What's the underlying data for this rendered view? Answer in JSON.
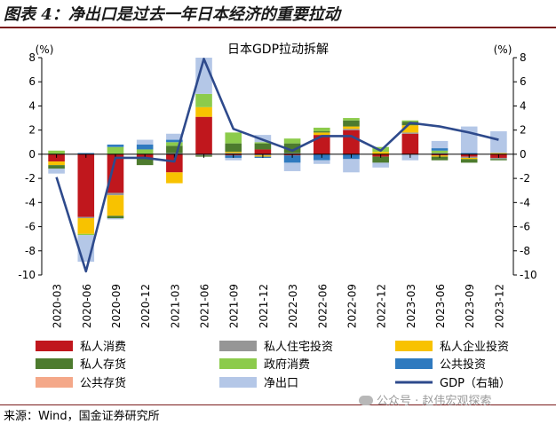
{
  "header": {
    "title": "图表 4：净出口是过去一年日本经济的重要拉动"
  },
  "source": "来源：Wind，国金证券研究所",
  "watermark": "公众号 · 赵伟宏观探索",
  "chart_data": {
    "type": "bar",
    "stacked": true,
    "title": "日本GDP拉动拆解",
    "left_unit": "(%)",
    "right_unit": "(%)",
    "ylim": [
      -10,
      8
    ],
    "y2lim": [
      -10,
      8
    ],
    "yticks": [
      -10,
      -8,
      -6,
      -4,
      -2,
      0,
      2,
      4,
      6,
      8
    ],
    "grid": false,
    "legend_position": "bottom",
    "categories": [
      "2020-03",
      "2020-06",
      "2020-09",
      "2020-12",
      "2021-03",
      "2021-06",
      "2021-09",
      "2021-12",
      "2022-03",
      "2022-06",
      "2022-09",
      "2022-12",
      "2023-03",
      "2023-06",
      "2023-09",
      "2023-12"
    ],
    "series": [
      {
        "name": "私人消费",
        "color": "#c0171d",
        "values": [
          -0.6,
          -5.2,
          -3.2,
          -0.3,
          -1.5,
          3.1,
          -0.1,
          0.4,
          -0.1,
          1.6,
          2.0,
          -0.2,
          1.7,
          -0.1,
          -0.2,
          -0.3
        ]
      },
      {
        "name": "私人住宅投资",
        "color": "#969696",
        "values": [
          0.0,
          -0.1,
          -0.2,
          0.0,
          0.1,
          -0.1,
          0.1,
          -0.1,
          0.1,
          0.0,
          0.1,
          0.0,
          0.1,
          0.1,
          -0.1,
          -0.1
        ]
      },
      {
        "name": "私人企业投资",
        "color": "#f8c200",
        "values": [
          -0.3,
          -1.3,
          -1.7,
          0.0,
          -0.9,
          0.8,
          0.1,
          -0.1,
          0.0,
          0.2,
          0.2,
          0.2,
          0.6,
          -0.1,
          -0.1,
          0.1
        ]
      },
      {
        "name": "私人存货",
        "color": "#4d7b2e",
        "values": [
          -0.3,
          0.0,
          -0.2,
          -0.6,
          0.6,
          -0.1,
          0.7,
          0.5,
          0.8,
          0.1,
          0.5,
          -0.5,
          0.3,
          -0.3,
          -0.3,
          -0.1
        ]
      },
      {
        "name": "政府消费",
        "color": "#8ccb4b",
        "values": [
          0.3,
          -0.1,
          0.6,
          0.4,
          0.3,
          1.1,
          0.9,
          0.1,
          0.4,
          0.3,
          0.2,
          0.4,
          0.1,
          0.2,
          0.0,
          0.0
        ]
      },
      {
        "name": "公共投资",
        "color": "#2f7abf",
        "values": [
          0.0,
          0.1,
          0.2,
          0.4,
          0.2,
          0.0,
          -0.2,
          -0.1,
          -0.6,
          -0.5,
          -0.4,
          0.0,
          0.0,
          0.2,
          0.1,
          0.0
        ]
      },
      {
        "name": "公共存货",
        "color": "#f4a889",
        "values": [
          0.0,
          0.0,
          0.0,
          0.0,
          0.0,
          0.0,
          0.0,
          0.0,
          0.0,
          0.0,
          0.0,
          0.0,
          0.0,
          0.0,
          0.0,
          0.0
        ]
      },
      {
        "name": "净出口",
        "color": "#b4c7e7",
        "values": [
          -0.4,
          -2.2,
          -0.1,
          0.4,
          0.5,
          3.0,
          -0.2,
          0.6,
          -0.7,
          -0.3,
          -1.1,
          -0.4,
          -0.5,
          0.6,
          2.2,
          1.8
        ]
      }
    ],
    "line_series": {
      "name": "GDP（右轴）",
      "color": "#2e4a8c",
      "axis": "right",
      "values": [
        -1.9,
        -9.7,
        -0.3,
        -0.3,
        -0.6,
        7.9,
        2.1,
        1.2,
        0.3,
        1.5,
        1.5,
        0.3,
        2.6,
        2.3,
        1.8,
        1.2
      ]
    }
  }
}
